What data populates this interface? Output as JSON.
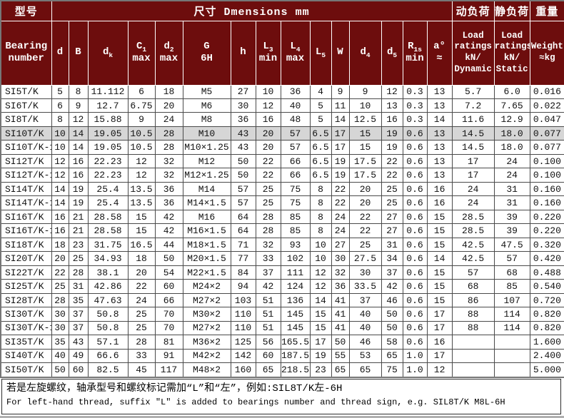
{
  "header": {
    "model": "型号",
    "dimensions": "尺寸 Dmensions mm",
    "dynamic_load": "动负荷",
    "static_load": "静负荷",
    "weight": "重量"
  },
  "columns": [
    {
      "id": "bearing",
      "label": "Bearing\nnumber",
      "small": false
    },
    {
      "id": "d",
      "label": "d",
      "small": false
    },
    {
      "id": "B",
      "label": "B",
      "small": false
    },
    {
      "id": "dk",
      "label": "d_{k}",
      "small": false
    },
    {
      "id": "c1",
      "label": "C_{1}\nmax",
      "small": false
    },
    {
      "id": "d2",
      "label": "d_{2}\nmax",
      "small": false
    },
    {
      "id": "G",
      "label": "G\n6H",
      "small": false
    },
    {
      "id": "h",
      "label": "h",
      "small": false
    },
    {
      "id": "L3",
      "label": "L_{3}\nmin",
      "small": false
    },
    {
      "id": "L4",
      "label": "L_{4}\nmax",
      "small": false
    },
    {
      "id": "L5",
      "label": "L_{5}",
      "small": false
    },
    {
      "id": "W",
      "label": "W",
      "small": false
    },
    {
      "id": "d4",
      "label": "d_{4}",
      "small": false
    },
    {
      "id": "d5",
      "label": "d_{5}",
      "small": false
    },
    {
      "id": "r1s",
      "label": "R_{1s}\nmin",
      "small": false
    },
    {
      "id": "a",
      "label": "a°\n≈",
      "small": false
    },
    {
      "id": "dyn",
      "label": "Load\nratings\nkN/\nDynamic",
      "small": true
    },
    {
      "id": "stat",
      "label": "Load\nratings\nkN/\nStatic",
      "small": true
    },
    {
      "id": "wt",
      "label": "Weight\n≈kg",
      "small": true
    }
  ],
  "rows": [
    {
      "bearing": "SI5T/K",
      "highlight": false,
      "values": [
        "5",
        "8",
        "11.112",
        "6",
        "18",
        "M5",
        "27",
        "10",
        "36",
        "4",
        "9",
        "9",
        "12",
        "0.3",
        "13",
        "5.7",
        "6.0",
        "0.016"
      ]
    },
    {
      "bearing": "SI6T/K",
      "highlight": false,
      "values": [
        "6",
        "9",
        "12.7",
        "6.75",
        "20",
        "M6",
        "30",
        "12",
        "40",
        "5",
        "11",
        "10",
        "13",
        "0.3",
        "13",
        "7.2",
        "7.65",
        "0.022"
      ]
    },
    {
      "bearing": "SI8T/K",
      "highlight": false,
      "values": [
        "8",
        "12",
        "15.88",
        "9",
        "24",
        "M8",
        "36",
        "16",
        "48",
        "5",
        "14",
        "12.5",
        "16",
        "0.3",
        "14",
        "11.6",
        "12.9",
        "0.047"
      ]
    },
    {
      "bearing": "SI10T/K",
      "highlight": true,
      "values": [
        "10",
        "14",
        "19.05",
        "10.5",
        "28",
        "M10",
        "43",
        "20",
        "57",
        "6.5",
        "17",
        "15",
        "19",
        "0.6",
        "13",
        "14.5",
        "18.0",
        "0.077"
      ]
    },
    {
      "bearing": "SI10T/K-1",
      "highlight": false,
      "values": [
        "10",
        "14",
        "19.05",
        "10.5",
        "28",
        "M10×1.25",
        "43",
        "20",
        "57",
        "6.5",
        "17",
        "15",
        "19",
        "0.6",
        "13",
        "14.5",
        "18.0",
        "0.077"
      ]
    },
    {
      "bearing": "SI12T/K",
      "highlight": false,
      "values": [
        "12",
        "16",
        "22.23",
        "12",
        "32",
        "M12",
        "50",
        "22",
        "66",
        "6.5",
        "19",
        "17.5",
        "22",
        "0.6",
        "13",
        "17",
        "24",
        "0.100"
      ]
    },
    {
      "bearing": "SI12T/K-1",
      "highlight": false,
      "values": [
        "12",
        "16",
        "22.23",
        "12",
        "32",
        "M12×1.25",
        "50",
        "22",
        "66",
        "6.5",
        "19",
        "17.5",
        "22",
        "0.6",
        "13",
        "17",
        "24",
        "0.100"
      ]
    },
    {
      "bearing": "SI14T/K",
      "highlight": false,
      "values": [
        "14",
        "19",
        "25.4",
        "13.5",
        "36",
        "M14",
        "57",
        "25",
        "75",
        "8",
        "22",
        "20",
        "25",
        "0.6",
        "16",
        "24",
        "31",
        "0.160"
      ]
    },
    {
      "bearing": "SI14T/K-1",
      "highlight": false,
      "values": [
        "14",
        "19",
        "25.4",
        "13.5",
        "36",
        "M14×1.5",
        "57",
        "25",
        "75",
        "8",
        "22",
        "20",
        "25",
        "0.6",
        "16",
        "24",
        "31",
        "0.160"
      ]
    },
    {
      "bearing": "SI16T/K",
      "highlight": false,
      "values": [
        "16",
        "21",
        "28.58",
        "15",
        "42",
        "M16",
        "64",
        "28",
        "85",
        "8",
        "24",
        "22",
        "27",
        "0.6",
        "15",
        "28.5",
        "39",
        "0.220"
      ]
    },
    {
      "bearing": "SI16T/K-1",
      "highlight": false,
      "values": [
        "16",
        "21",
        "28.58",
        "15",
        "42",
        "M16×1.5",
        "64",
        "28",
        "85",
        "8",
        "24",
        "22",
        "27",
        "0.6",
        "15",
        "28.5",
        "39",
        "0.220"
      ]
    },
    {
      "bearing": "SI18T/K",
      "highlight": false,
      "values": [
        "18",
        "23",
        "31.75",
        "16.5",
        "44",
        "M18×1.5",
        "71",
        "32",
        "93",
        "10",
        "27",
        "25",
        "31",
        "0.6",
        "15",
        "42.5",
        "47.5",
        "0.320"
      ]
    },
    {
      "bearing": "SI20T/K",
      "highlight": false,
      "values": [
        "20",
        "25",
        "34.93",
        "18",
        "50",
        "M20×1.5",
        "77",
        "33",
        "102",
        "10",
        "30",
        "27.5",
        "34",
        "0.6",
        "14",
        "42.5",
        "57",
        "0.420"
      ]
    },
    {
      "bearing": "SI22T/K",
      "highlight": false,
      "values": [
        "22",
        "28",
        "38.1",
        "20",
        "54",
        "M22×1.5",
        "84",
        "37",
        "111",
        "12",
        "32",
        "30",
        "37",
        "0.6",
        "15",
        "57",
        "68",
        "0.488"
      ]
    },
    {
      "bearing": "SI25T/K",
      "highlight": false,
      "values": [
        "25",
        "31",
        "42.86",
        "22",
        "60",
        "M24×2",
        "94",
        "42",
        "124",
        "12",
        "36",
        "33.5",
        "42",
        "0.6",
        "15",
        "68",
        "85",
        "0.540"
      ]
    },
    {
      "bearing": "SI28T/K",
      "highlight": false,
      "values": [
        "28",
        "35",
        "47.63",
        "24",
        "66",
        "M27×2",
        "103",
        "51",
        "136",
        "14",
        "41",
        "37",
        "46",
        "0.6",
        "15",
        "86",
        "107",
        "0.720"
      ]
    },
    {
      "bearing": "SI30T/K",
      "highlight": false,
      "values": [
        "30",
        "37",
        "50.8",
        "25",
        "70",
        "M30×2",
        "110",
        "51",
        "145",
        "15",
        "41",
        "40",
        "50",
        "0.6",
        "17",
        "88",
        "114",
        "0.820"
      ]
    },
    {
      "bearing": "SI30T/K-1",
      "highlight": false,
      "values": [
        "30",
        "37",
        "50.8",
        "25",
        "70",
        "M27×2",
        "110",
        "51",
        "145",
        "15",
        "41",
        "40",
        "50",
        "0.6",
        "17",
        "88",
        "114",
        "0.820"
      ]
    },
    {
      "bearing": "SI35T/K",
      "highlight": false,
      "values": [
        "35",
        "43",
        "57.1",
        "28",
        "81",
        "M36×2",
        "125",
        "56",
        "165.5",
        "17",
        "50",
        "46",
        "58",
        "0.6",
        "16",
        "",
        "",
        "1.600"
      ]
    },
    {
      "bearing": "SI40T/K",
      "highlight": false,
      "values": [
        "40",
        "49",
        "66.6",
        "33",
        "91",
        "M42×2",
        "142",
        "60",
        "187.5",
        "19",
        "55",
        "53",
        "65",
        "1.0",
        "17",
        "",
        "",
        "2.400"
      ]
    },
    {
      "bearing": "SI50T/K",
      "highlight": false,
      "values": [
        "50",
        "60",
        "82.5",
        "45",
        "117",
        "M48×2",
        "160",
        "65",
        "218.5",
        "23",
        "65",
        "65",
        "75",
        "1.0",
        "12",
        "",
        "",
        "5.000"
      ]
    }
  ],
  "footnote": {
    "zh": "若是左旋螺纹，轴承型号和螺纹标记需加“L”和“左”，例如:SIL8T/K左-6H",
    "en": "For left-hand thread, suffix \"L\" is added to bearings number and thread sign, e.g. SIL8T/K M8L-6H"
  },
  "colors": {
    "header_bg": "#6d0d0d",
    "highlight_row": "#d6d6d6"
  }
}
